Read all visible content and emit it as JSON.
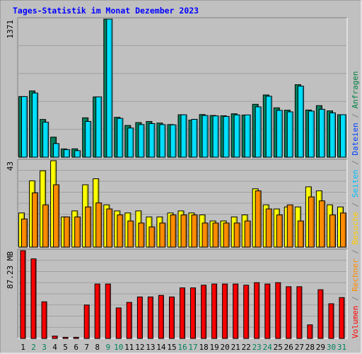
{
  "chart_data": [
    {
      "type": "bar",
      "title": "Tages-Statistik im Monat Dezember 2023",
      "ymax_label": "1371",
      "ylim": [
        0,
        1371
      ],
      "categories": [
        "1",
        "2",
        "3",
        "4",
        "5",
        "6",
        "7",
        "8",
        "9",
        "10",
        "11",
        "12",
        "13",
        "14",
        "15",
        "16",
        "17",
        "18",
        "19",
        "20",
        "21",
        "22",
        "23",
        "24",
        "25",
        "26",
        "27",
        "28",
        "29",
        "30",
        "31"
      ],
      "weekend_days": [
        "2",
        "3",
        "9",
        "10",
        "16",
        "17",
        "23",
        "24",
        "30",
        "31"
      ],
      "series": [
        {
          "name": "Anfragen",
          "color": "#00805c",
          "values": [
            602,
            658,
            375,
            199,
            82,
            83,
            391,
            598,
            1371,
            396,
            315,
            344,
            354,
            339,
            324,
            421,
            368,
            423,
            414,
            411,
            431,
            418,
            525,
            618,
            490,
            467,
            720,
            468,
            512,
            460,
            422
          ]
        },
        {
          "name": "Dateien",
          "color": "#00e0ff",
          "values": [
            602,
            637,
            347,
            135,
            75,
            65,
            355,
            598,
            1371,
            385,
            290,
            324,
            334,
            324,
            321,
            421,
            376,
            414,
            410,
            405,
            420,
            420,
            500,
            605,
            465,
            450,
            705,
            458,
            475,
            440,
            422
          ]
        }
      ]
    },
    {
      "type": "bar",
      "ymax_label": "43",
      "ylim": [
        0,
        43
      ],
      "categories": [
        "1",
        "2",
        "3",
        "4",
        "5",
        "6",
        "7",
        "8",
        "9",
        "10",
        "11",
        "12",
        "13",
        "14",
        "15",
        "16",
        "17",
        "18",
        "19",
        "20",
        "21",
        "22",
        "23",
        "24",
        "25",
        "26",
        "27",
        "28",
        "29",
        "30",
        "31"
      ],
      "series": [
        {
          "name": "Seiten",
          "color": "#ffff00",
          "values": [
            17,
            33,
            38,
            43,
            15,
            18,
            31,
            34,
            21,
            18,
            17,
            18,
            15,
            15,
            17,
            18,
            17,
            16,
            13,
            13,
            15,
            16,
            29,
            21,
            19,
            20,
            20,
            30,
            28,
            21,
            20
          ]
        },
        {
          "name": "Besuche",
          "color": "#ff8c00",
          "values": [
            14,
            27,
            21,
            31,
            15,
            15,
            20,
            22,
            19,
            16,
            13,
            12,
            10,
            12,
            16,
            16,
            16,
            12,
            12,
            12,
            12,
            13,
            28,
            19,
            16,
            21,
            13,
            25,
            23,
            16,
            17
          ]
        }
      ]
    },
    {
      "type": "bar",
      "ymax_label": "87.23 MB",
      "ylim": [
        0,
        87.23
      ],
      "categories": [
        "1",
        "2",
        "3",
        "4",
        "5",
        "6",
        "7",
        "8",
        "9",
        "10",
        "11",
        "12",
        "13",
        "14",
        "15",
        "16",
        "17",
        "18",
        "19",
        "20",
        "21",
        "22",
        "23",
        "24",
        "25",
        "26",
        "27",
        "28",
        "29",
        "30",
        "31"
      ],
      "series": [
        {
          "name": "Volumen",
          "color": "#ff0000",
          "values": [
            87.23,
            79.1,
            36.4,
            2.3,
            1.1,
            1.1,
            33.2,
            54.1,
            54.1,
            30.3,
            35.8,
            41.2,
            41.2,
            42.8,
            41.2,
            50.2,
            50.2,
            52.9,
            54.1,
            54.1,
            54.1,
            52.9,
            55.4,
            54.1,
            55.4,
            51.4,
            51.4,
            13.5,
            48.4,
            34.5,
            40.6
          ]
        }
      ]
    }
  ],
  "legend": {
    "items": [
      {
        "text": "Volumen",
        "color": "#ff0000"
      },
      {
        "text": " / ",
        "color": "#808080"
      },
      {
        "text": "Rechner",
        "color": "#ff8c00"
      },
      {
        "text": " / ",
        "color": "#808080"
      },
      {
        "text": "Besuche",
        "color": "#ffcc00"
      },
      {
        "text": " / ",
        "color": "#808080"
      },
      {
        "text": "Seiten",
        "color": "#00bfff"
      },
      {
        "text": " / ",
        "color": "#808080"
      },
      {
        "text": "Dateien",
        "color": "#0040ff"
      },
      {
        "text": " / ",
        "color": "#808080"
      },
      {
        "text": "Anfragen",
        "color": "#008040"
      }
    ]
  },
  "colors": {
    "background": "#c0c0c0",
    "plot_bg": "#c0c0c0",
    "grid": "#a0a0a0",
    "title": "#0000ff",
    "weekday_label": "#000000",
    "weekend_label": "#00805c"
  }
}
